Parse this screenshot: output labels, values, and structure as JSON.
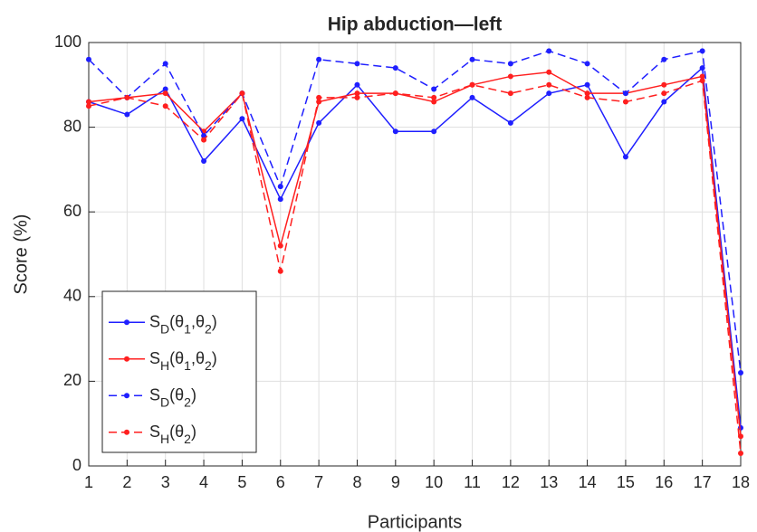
{
  "chart_data": {
    "type": "line",
    "title": "Hip abduction—left",
    "xlabel": "Participants",
    "ylabel": "Score (%)",
    "x": [
      1,
      2,
      3,
      4,
      5,
      6,
      7,
      8,
      9,
      10,
      11,
      12,
      13,
      14,
      15,
      16,
      17,
      18
    ],
    "series": [
      {
        "name": "S_D(θ_1,θ_2)",
        "color": "#1f1fff",
        "dash": false,
        "values": [
          86,
          83,
          89,
          72,
          82,
          63,
          81,
          90,
          79,
          79,
          87,
          81,
          88,
          90,
          73,
          86,
          94,
          9
        ]
      },
      {
        "name": "S_H(θ_1,θ_2)",
        "color": "#ff1f1f",
        "dash": false,
        "values": [
          86,
          87,
          88,
          79,
          88,
          52,
          86,
          88,
          88,
          86,
          90,
          92,
          93,
          88,
          88,
          90,
          92,
          7
        ]
      },
      {
        "name": "S_D(θ_2)",
        "color": "#1f1fff",
        "dash": true,
        "values": [
          96,
          87,
          95,
          78,
          88,
          66,
          96,
          95,
          94,
          89,
          96,
          95,
          98,
          95,
          88,
          96,
          98,
          22
        ]
      },
      {
        "name": "S_H(θ_2)",
        "color": "#ff1f1f",
        "dash": true,
        "values": [
          85,
          87,
          85,
          77,
          88,
          46,
          87,
          87,
          88,
          87,
          90,
          88,
          90,
          87,
          86,
          88,
          91,
          3
        ]
      }
    ],
    "xlim": [
      1,
      18
    ],
    "xticks": [
      1,
      2,
      3,
      4,
      5,
      6,
      7,
      8,
      9,
      10,
      11,
      12,
      13,
      14,
      15,
      16,
      17,
      18
    ],
    "ylim": [
      0,
      100
    ],
    "yticks": [
      0,
      20,
      40,
      60,
      80,
      100
    ],
    "grid": true,
    "legend": "lower left"
  }
}
